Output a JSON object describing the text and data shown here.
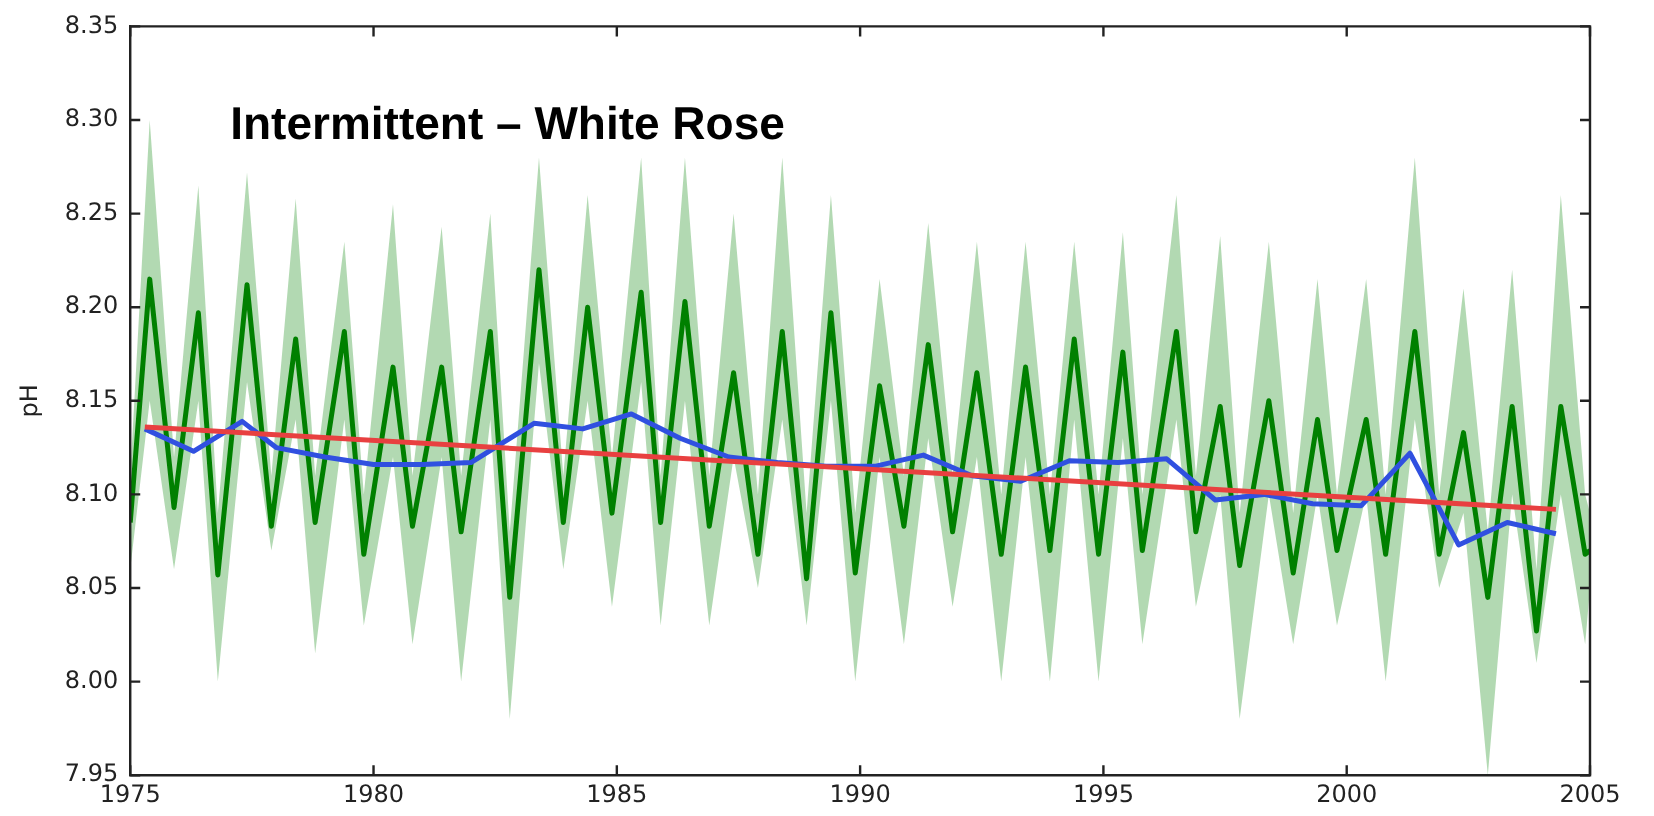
{
  "chart_data": {
    "type": "line",
    "title": "Intermittent – White Rose",
    "ylabel": "pH",
    "xlim": [
      1975,
      2005
    ],
    "xticks": [
      1975,
      1980,
      1985,
      1990,
      1995,
      2000,
      2005
    ],
    "ylim": [
      7.95,
      8.35
    ],
    "yticks": [
      {
        "value": 7.95,
        "label": "7.95"
      },
      {
        "value": 8.0,
        "label": "8.00"
      },
      {
        "value": 8.05,
        "label": "8.05"
      },
      {
        "value": 8.1,
        "label": "8.10"
      },
      {
        "value": 8.15,
        "label": "8.15"
      },
      {
        "value": 8.2,
        "label": "8.20"
      },
      {
        "value": 8.25,
        "label": "8.25"
      },
      {
        "value": 8.3,
        "label": "8.30"
      },
      {
        "value": 8.35,
        "label": "8.35"
      }
    ],
    "grid": false,
    "legend": false,
    "marker": "none",
    "line_style": "solid",
    "series": [
      {
        "color": "#008000",
        "x": [
          1975.0,
          1975.4,
          1975.9,
          1976.4,
          1976.8,
          1977.4,
          1977.9,
          1978.4,
          1978.8,
          1979.4,
          1979.8,
          1980.4,
          1980.8,
          1981.4,
          1981.8,
          1982.4,
          1982.8,
          1983.4,
          1983.9,
          1984.4,
          1984.9,
          1985.5,
          1985.9,
          1986.4,
          1986.9,
          1987.4,
          1987.9,
          1988.4,
          1988.9,
          1989.4,
          1989.9,
          1990.4,
          1990.9,
          1991.4,
          1991.9,
          1992.4,
          1992.9,
          1993.4,
          1993.9,
          1994.4,
          1994.9,
          1995.4,
          1995.8,
          1996.5,
          1996.9,
          1997.4,
          1997.8,
          1998.4,
          1998.9,
          1999.4,
          1999.8,
          2000.4,
          2000.8,
          2001.4,
          2001.9,
          2002.4,
          2002.9,
          2003.4,
          2003.9,
          2004.4,
          2004.9,
          2005.0
        ],
        "values": [
          8.085,
          8.215,
          8.093,
          8.197,
          8.057,
          8.212,
          8.083,
          8.183,
          8.085,
          8.187,
          8.068,
          8.168,
          8.083,
          8.168,
          8.08,
          8.187,
          8.045,
          8.22,
          8.085,
          8.2,
          8.09,
          8.208,
          8.085,
          8.203,
          8.083,
          8.165,
          8.068,
          8.187,
          8.055,
          8.197,
          8.058,
          8.158,
          8.083,
          8.18,
          8.08,
          8.165,
          8.068,
          8.168,
          8.07,
          8.183,
          8.068,
          8.176,
          8.07,
          8.187,
          8.08,
          8.147,
          8.062,
          8.15,
          8.058,
          8.14,
          8.07,
          8.14,
          8.068,
          8.187,
          8.068,
          8.133,
          8.045,
          8.147,
          8.027,
          8.147,
          8.068,
          8.07
        ],
        "upper": [
          8.11,
          8.3,
          8.12,
          8.265,
          8.09,
          8.272,
          8.11,
          8.258,
          8.11,
          8.235,
          8.1,
          8.255,
          8.11,
          8.243,
          8.11,
          8.25,
          8.08,
          8.28,
          8.11,
          8.26,
          8.12,
          8.28,
          8.11,
          8.28,
          8.11,
          8.25,
          8.1,
          8.28,
          8.09,
          8.26,
          8.09,
          8.215,
          8.11,
          8.245,
          8.11,
          8.235,
          8.1,
          8.235,
          8.1,
          8.235,
          8.1,
          8.24,
          8.1,
          8.26,
          8.11,
          8.238,
          8.09,
          8.235,
          8.09,
          8.215,
          8.1,
          8.215,
          8.1,
          8.28,
          8.1,
          8.21,
          8.08,
          8.22,
          8.06,
          8.26,
          8.1,
          8.09
        ],
        "lower": [
          8.06,
          8.15,
          8.06,
          8.15,
          8.0,
          8.16,
          8.07,
          8.14,
          8.015,
          8.14,
          8.03,
          8.12,
          8.02,
          8.12,
          8.0,
          8.14,
          7.98,
          8.17,
          8.06,
          8.15,
          8.04,
          8.16,
          8.03,
          8.15,
          8.03,
          8.12,
          8.05,
          8.14,
          8.03,
          8.15,
          8.0,
          8.12,
          8.02,
          8.13,
          8.04,
          8.12,
          8.0,
          8.12,
          8.0,
          8.14,
          8.0,
          8.13,
          8.02,
          8.14,
          8.04,
          8.1,
          7.98,
          8.1,
          8.02,
          8.1,
          8.03,
          8.1,
          8.0,
          8.14,
          8.05,
          8.09,
          7.95,
          8.1,
          8.01,
          8.1,
          8.02,
          8.05
        ]
      },
      {
        "color": "#3050e0",
        "x": [
          1975.3,
          1976.3,
          1977.3,
          1978,
          1979,
          1980,
          1981,
          1982,
          1983.3,
          1984.3,
          1985.3,
          1986.3,
          1987.3,
          1988.3,
          1989.3,
          1990.3,
          1991.3,
          1992.3,
          1993.3,
          1994.3,
          1995.3,
          1996.3,
          1997.3,
          1998.3,
          1999.3,
          2000.3,
          2001.3,
          2002.3,
          2003.3,
          2004.3
        ],
        "values": [
          8.135,
          8.123,
          8.139,
          8.125,
          8.12,
          8.116,
          8.116,
          8.117,
          8.138,
          8.135,
          8.143,
          8.13,
          8.12,
          8.117,
          8.115,
          8.115,
          8.121,
          8.11,
          8.107,
          8.118,
          8.117,
          8.119,
          8.097,
          8.1,
          8.095,
          8.094,
          8.122,
          8.073,
          8.085,
          8.079
        ]
      },
      {
        "color": "#e84040",
        "x": [
          1975.3,
          2004.3
        ],
        "values": [
          8.136,
          8.092
        ]
      }
    ]
  }
}
